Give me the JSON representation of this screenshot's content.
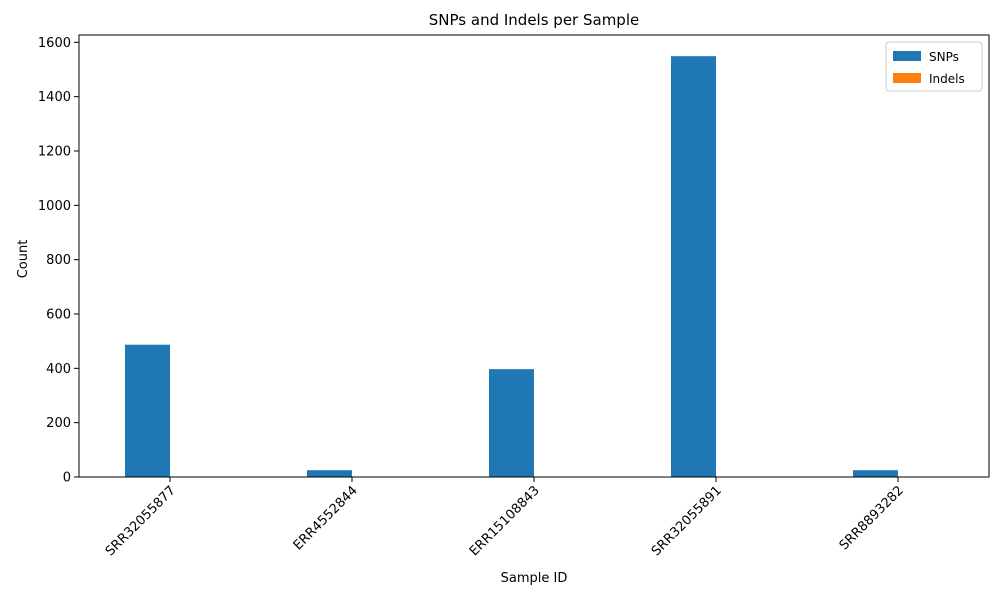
{
  "chart_data": {
    "type": "bar",
    "title": "SNPs and Indels per Sample",
    "xlabel": "Sample ID",
    "ylabel": "Count",
    "categories": [
      "SRR32055877",
      "ERR4552844",
      "ERR15108843",
      "SRR32055891",
      "SRR8893282"
    ],
    "series": [
      {
        "name": "SNPs",
        "color": "#1f77b4",
        "values": [
          487,
          25,
          397,
          1549,
          25
        ]
      },
      {
        "name": "Indels",
        "color": "#ff7f0e",
        "values": [
          0,
          0,
          0,
          0,
          0
        ]
      }
    ],
    "ylim": [
      0,
      1627
    ],
    "yticks": [
      0,
      200,
      400,
      600,
      800,
      1000,
      1200,
      1400,
      1600
    ],
    "legend_position": "top-right",
    "grid": false
  }
}
